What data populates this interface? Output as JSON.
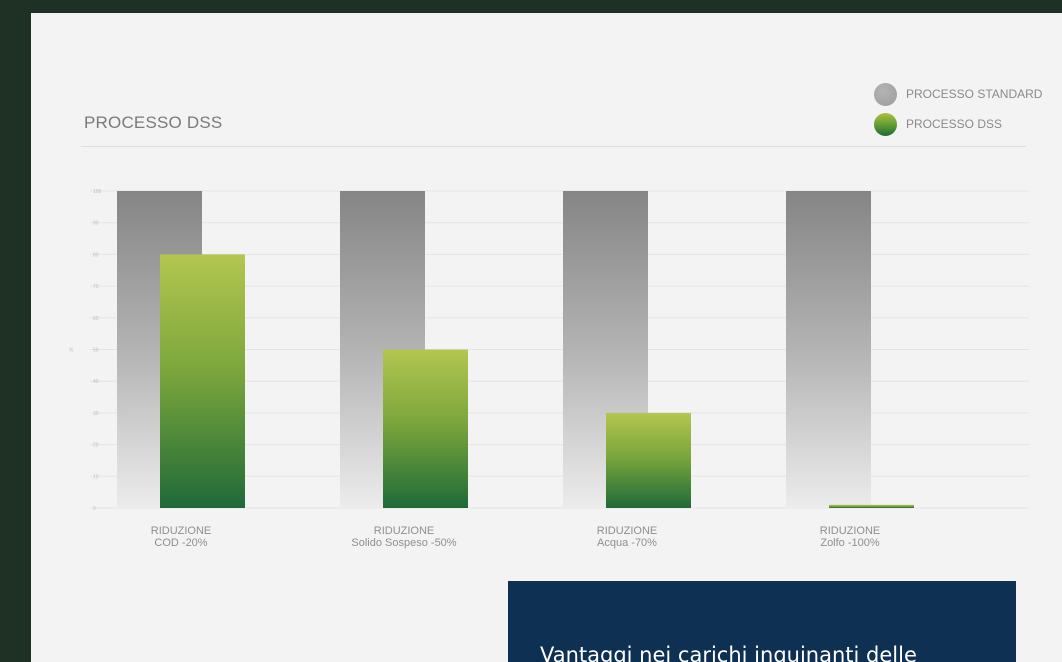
{
  "title": "PROCESSO DSS",
  "legend": [
    {
      "label": "PROCESSO STANDARD",
      "color": "#9b9b9b"
    },
    {
      "label": "PROCESSO DSS",
      "color": "#5e9a32"
    }
  ],
  "info_text": "Vantaggi nei carichi inquinanti delle",
  "chart_data": {
    "type": "bar",
    "title": "PROCESSO DSS",
    "ylabel": "%",
    "ylim": [
      0,
      100
    ],
    "yticks": [
      "0",
      "10",
      "20",
      "30",
      "40",
      "50",
      "60",
      "70",
      "80",
      "90",
      "100"
    ],
    "grid": true,
    "legend_position": "top-right",
    "categories": [
      [
        "RIDUZIONE",
        "COD -20%"
      ],
      [
        "RIDUZIONE",
        "Solido Sospeso -50%"
      ],
      [
        "RIDUZIONE",
        "Acqua -70%"
      ],
      [
        "RIDUZIONE",
        "Zolfo -100%"
      ]
    ],
    "series": [
      {
        "name": "PROCESSO STANDARD",
        "values": [
          100,
          100,
          100,
          100
        ]
      },
      {
        "name": "PROCESSO DSS",
        "values": [
          80,
          50,
          30,
          1
        ]
      }
    ]
  }
}
